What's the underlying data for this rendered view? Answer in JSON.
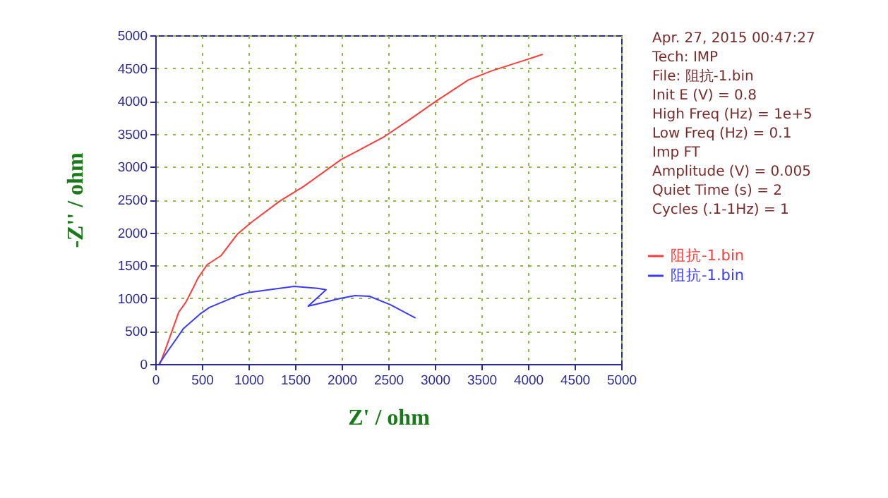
{
  "chart_data": {
    "type": "line",
    "xlabel": "Z' / ohm",
    "ylabel": "-Z'' / ohm",
    "xlim": [
      0,
      5000
    ],
    "ylim": [
      0,
      5000
    ],
    "xticks": [
      0,
      500,
      1000,
      1500,
      2000,
      2500,
      3000,
      3500,
      4000,
      4500,
      5000
    ],
    "yticks": [
      0,
      500,
      1000,
      1500,
      2000,
      2500,
      3000,
      3500,
      4000,
      4500,
      5000
    ],
    "grid": true,
    "legend": "right",
    "marker": "none",
    "line_style": "solid",
    "annotations": [
      "Apr. 27, 2015   00:47:27",
      "Tech: IMP",
      "File: 阻抗-1.bin",
      "Init E (V) = 0.8",
      "High Freq (Hz) = 1e+5",
      "Low Freq (Hz) = 0.1",
      "Imp FT",
      "Amplitude (V) = 0.005",
      "Quiet Time (s) = 2",
      "Cycles (.1-1Hz) = 1"
    ],
    "series": [
      {
        "name": "阻抗-1.bin",
        "color": "#ff3b3b",
        "x": [
          50,
          126,
          252,
          328,
          404,
          455,
          556,
          707,
          884,
          1035,
          1338,
          1591,
          1995,
          2449,
          2753,
          3005,
          3359,
          3611,
          3965,
          4157
        ],
        "values": [
          0,
          290,
          790,
          940,
          1150,
          1300,
          1510,
          1650,
          1980,
          2160,
          2480,
          2700,
          3110,
          3450,
          3740,
          3990,
          4320,
          4460,
          4620,
          4710
        ]
      },
      {
        "name": "阻抗-1.bin",
        "color": "#3a3aff",
        "x": [
          40,
          126,
          303,
          480,
          581,
          884,
          1010,
          1490,
          1742,
          1833,
          1641,
          1995,
          2146,
          2298,
          2525,
          2793
        ],
        "values": [
          0,
          180,
          540,
          760,
          860,
          1040,
          1090,
          1180,
          1150,
          1130,
          880,
          1000,
          1040,
          1030,
          900,
          700
        ]
      }
    ]
  }
}
